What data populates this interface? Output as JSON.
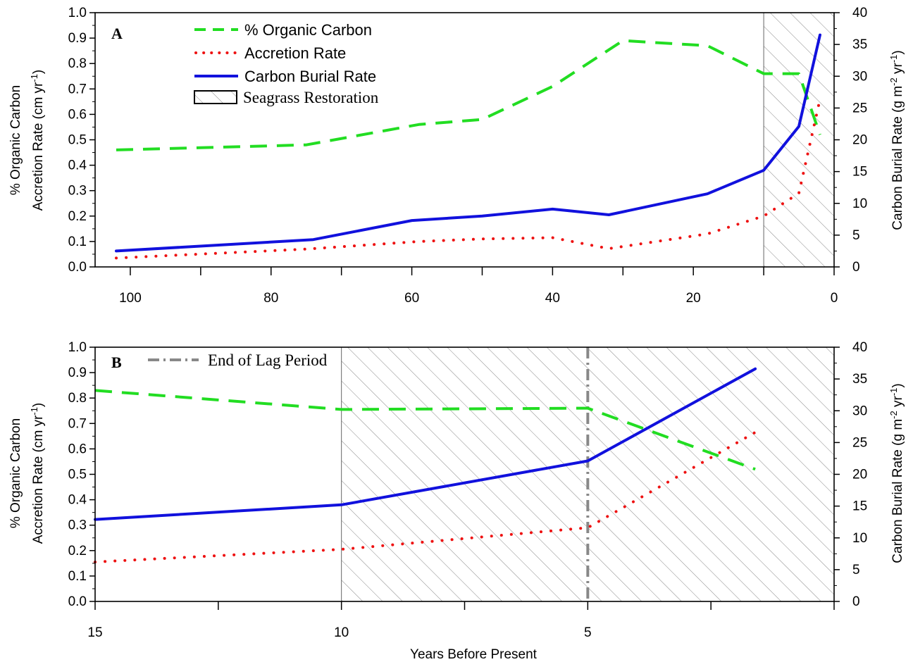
{
  "chart_data": [
    {
      "panel": "A",
      "type": "line",
      "x_reversed": true,
      "xlim": [
        105,
        0
      ],
      "xticks": [
        100,
        80,
        60,
        40,
        20,
        0
      ],
      "ylim_left": [
        0,
        1.0
      ],
      "ylim_right": [
        0,
        40
      ],
      "ylabel_left_1": "% Organic Carbon",
      "ylabel_left_2": "Accretion Rate (cm yr-1)",
      "ylabel_right": "Carbon Burial Rate (g m-2 yr-1)",
      "shaded_region": {
        "label": "Seagrass Restoration",
        "x_from": 10,
        "x_to": 0
      },
      "series": [
        {
          "name": "% Organic Carbon",
          "axis": "left",
          "style": "dashed",
          "color": "#22dd22",
          "x": [
            102,
            75,
            59,
            50,
            40,
            30,
            18,
            10,
            5,
            2
          ],
          "y": [
            0.46,
            0.48,
            0.56,
            0.58,
            0.71,
            0.89,
            0.87,
            0.76,
            0.76,
            0.52
          ]
        },
        {
          "name": "Accretion Rate",
          "axis": "left",
          "style": "dotted",
          "color": "#ee1111",
          "x": [
            102,
            75,
            59,
            50,
            40,
            32,
            18,
            10,
            5,
            2
          ],
          "y": [
            0.035,
            0.07,
            0.1,
            0.11,
            0.115,
            0.072,
            0.13,
            0.2,
            0.29,
            0.66
          ]
        },
        {
          "name": "Carbon Burial Rate",
          "axis": "right",
          "style": "solid",
          "color": "#1111dd",
          "x": [
            102,
            74,
            60,
            50,
            40,
            32,
            18,
            10,
            5,
            2
          ],
          "y": [
            2.5,
            4.3,
            7.3,
            8.0,
            9.1,
            8.2,
            11.5,
            15.2,
            22.1,
            36.5
          ]
        }
      ]
    },
    {
      "panel": "B",
      "type": "line",
      "x_reversed": true,
      "xlim": [
        15,
        0
      ],
      "xticks": [
        15,
        10,
        5
      ],
      "xlabel": "Years Before Present",
      "ylim_left": [
        0,
        1.0
      ],
      "ylim_right": [
        0,
        40
      ],
      "ylabel_left_1": "% Organic Carbon",
      "ylabel_left_2": "Accretion Rate (cm yr-1)",
      "ylabel_right": "Carbon Burial Rate (g m-2 yr-1)",
      "shaded_region": {
        "x_from": 10,
        "x_to": 0
      },
      "vline": {
        "label": "End of Lag Period",
        "x": 5
      },
      "series": [
        {
          "name": "% Organic Carbon",
          "axis": "left",
          "style": "dashed",
          "color": "#22dd22",
          "x": [
            15,
            10,
            5,
            1.6
          ],
          "y": [
            0.83,
            0.755,
            0.76,
            0.52
          ]
        },
        {
          "name": "Accretion Rate",
          "axis": "left",
          "style": "dotted",
          "color": "#ee1111",
          "x": [
            15,
            10,
            5,
            1.6
          ],
          "y": [
            0.155,
            0.205,
            0.29,
            0.665
          ]
        },
        {
          "name": "Carbon Burial Rate",
          "axis": "right",
          "style": "solid",
          "color": "#1111dd",
          "x": [
            15,
            10,
            5,
            1.6
          ],
          "y": [
            12.9,
            15.2,
            22.1,
            36.6
          ]
        }
      ]
    }
  ],
  "legend": {
    "organic": "% Organic Carbon",
    "accretion": "Accretion Rate",
    "burial": "Carbon Burial Rate",
    "restoration": "Seagrass Restoration",
    "lag": "End of Lag Period"
  },
  "labels": {
    "panel_a": "A",
    "panel_b": "B",
    "xlabel": "Years Before Present",
    "left_1": "% Organic Carbon",
    "left_2a": "Accretion Rate (cm yr",
    "left_2sup": "-1",
    "left_2b": ")",
    "right_a": "Carbon Burial Rate (g m",
    "right_sup1": "-2",
    "right_mid": " yr",
    "right_sup2": "-1",
    "right_b": ")"
  }
}
